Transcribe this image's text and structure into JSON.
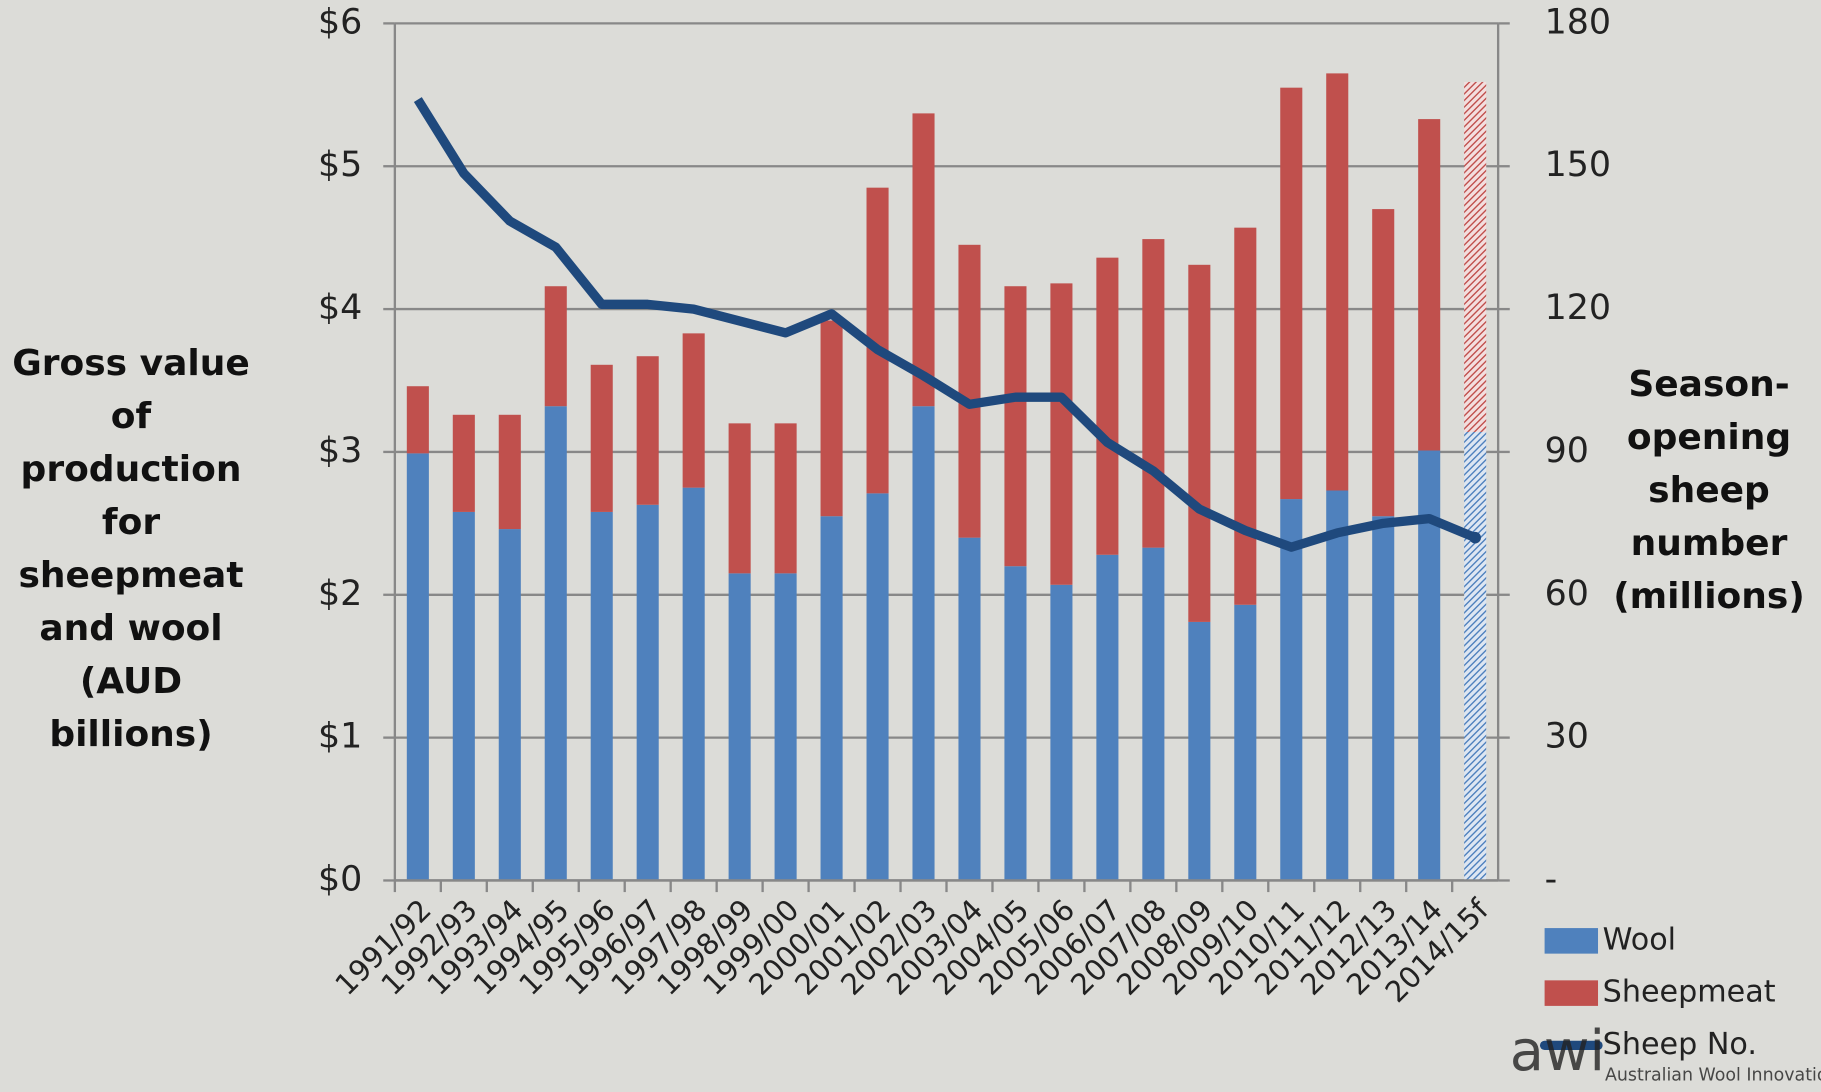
{
  "chart_data": {
    "type": "bar_line",
    "y_label": "Gross value of production for sheepmeat and wool (AUD billions)",
    "y2_label": "Season-opening sheep number (millions)",
    "categories": [
      "1991/92",
      "1992/93",
      "1993/94",
      "1994/95",
      "1995/96",
      "1996/97",
      "1997/98",
      "1998/99",
      "1999/00",
      "2000/01",
      "2001/02",
      "2002/03",
      "2003/04",
      "2004/05",
      "2005/06",
      "2006/07",
      "2007/08",
      "2008/09",
      "2009/10",
      "2010/11",
      "2011/12",
      "2012/13",
      "2013/14",
      "2014/15f"
    ],
    "series": [
      {
        "name": "Wool",
        "type": "bar",
        "color": "#4f81bd",
        "values": [
          2.99,
          2.58,
          2.46,
          3.32,
          2.58,
          2.63,
          2.75,
          2.15,
          2.15,
          2.55,
          2.71,
          3.32,
          2.4,
          2.2,
          2.07,
          2.28,
          2.33,
          1.81,
          1.93,
          2.67,
          2.73,
          2.55,
          3.01,
          3.14
        ]
      },
      {
        "name": "Sheepmeat",
        "type": "bar",
        "color": "#c0504d",
        "values": [
          0.47,
          0.68,
          0.8,
          0.84,
          1.03,
          1.04,
          1.08,
          1.05,
          1.05,
          1.37,
          2.14,
          2.05,
          2.05,
          1.96,
          2.11,
          2.08,
          2.16,
          2.5,
          2.64,
          2.88,
          2.92,
          2.15,
          2.32,
          2.45
        ]
      },
      {
        "name": "Sheep No.",
        "type": "line",
        "axis": "y2",
        "color": "#1f497d",
        "values": [
          164,
          148.5,
          138.5,
          133,
          121,
          121,
          120,
          117.5,
          115,
          119,
          111.5,
          106,
          100,
          101.5,
          101.5,
          92,
          86,
          78,
          73.5,
          70,
          73,
          75,
          76,
          72
        ]
      }
    ],
    "ylim": [
      0,
      6
    ],
    "yticks": [
      {
        "value": 0,
        "label": "$0"
      },
      {
        "value": 1,
        "label": "$1"
      },
      {
        "value": 2,
        "label": "$2"
      },
      {
        "value": 3,
        "label": "$3"
      },
      {
        "value": 4,
        "label": "$4"
      },
      {
        "value": 5,
        "label": "$5"
      },
      {
        "value": 6,
        "label": "$6"
      }
    ],
    "y2lim": [
      0,
      180
    ],
    "y2ticks": [
      {
        "value": 0,
        "label": "-"
      },
      30,
      60,
      90,
      120,
      150,
      180
    ],
    "grid": true,
    "legend": "bottom-right",
    "logo": {
      "mark": "awi",
      "text": "Australian Wool Innovation Limited"
    }
  }
}
